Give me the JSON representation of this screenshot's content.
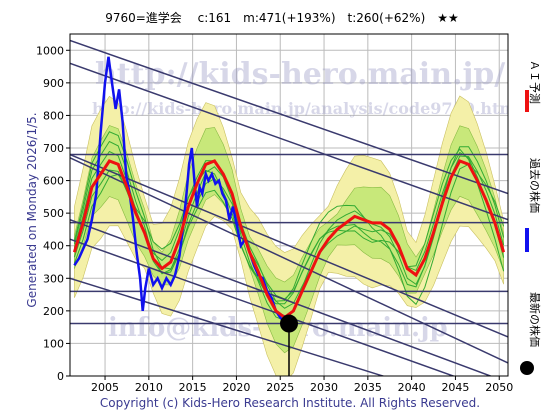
{
  "header": {
    "title": "9760=進学会　 c:161　m:471(+193%)　t:260(+62%)　★★"
  },
  "side_label": "Generated on Monday 2026/1/5.",
  "footer": "Copyright (c) Kids-Hero Research Institute. All Rights Reserved.",
  "watermarks": {
    "url": "http://kids-hero.main.jp/",
    "analysis_url": "http://kids-hero.main.jp/analysis/code9760.html",
    "email": "info@kids-hero.main.jp"
  },
  "legend": [
    {
      "label": "ＡＩ予測",
      "color": "#ee1111"
    },
    {
      "label": "過去の株価",
      "color": "#1111ee"
    },
    {
      "label": "最新の株価",
      "color": "#000000"
    }
  ],
  "colors": {
    "band_outer": "#f4f0a8",
    "band_inner": "#c8e87a",
    "analog_lines": "#33aa33",
    "trend_lines": "#3a3a6e",
    "grid": "#bbbbbb",
    "price": "#1111ee",
    "forecast": "#ee1111"
  },
  "chart_data": {
    "type": "line",
    "title": "9760=進学会　 c:161　m:471(+193%)　t:260(+62%)　★★",
    "xlim": [
      2001,
      2051
    ],
    "ylim": [
      0,
      1050
    ],
    "xticks": [
      2005,
      2010,
      2015,
      2020,
      2025,
      2030,
      2035,
      2040,
      2045,
      2050
    ],
    "yticks": [
      0,
      100,
      200,
      300,
      400,
      500,
      600,
      700,
      800,
      900,
      1000
    ],
    "grid": true,
    "latest": {
      "x": 2026.0,
      "y": 161
    },
    "horizontal_levels": [
      161,
      260,
      471,
      680
    ],
    "price": [
      [
        2001.5,
        340
      ],
      [
        2002.0,
        360
      ],
      [
        2002.5,
        390
      ],
      [
        2003.0,
        420
      ],
      [
        2003.5,
        480
      ],
      [
        2004.0,
        560
      ],
      [
        2004.5,
        750
      ],
      [
        2005.0,
        900
      ],
      [
        2005.4,
        980
      ],
      [
        2005.8,
        900
      ],
      [
        2006.2,
        820
      ],
      [
        2006.6,
        880
      ],
      [
        2007.0,
        780
      ],
      [
        2007.4,
        620
      ],
      [
        2007.8,
        560
      ],
      [
        2008.2,
        480
      ],
      [
        2008.6,
        380
      ],
      [
        2009.0,
        300
      ],
      [
        2009.3,
        200
      ],
      [
        2009.6,
        270
      ],
      [
        2010.0,
        330
      ],
      [
        2010.5,
        280
      ],
      [
        2011.0,
        300
      ],
      [
        2011.5,
        270
      ],
      [
        2012.0,
        300
      ],
      [
        2012.5,
        280
      ],
      [
        2013.0,
        310
      ],
      [
        2013.5,
        370
      ],
      [
        2014.0,
        480
      ],
      [
        2014.3,
        560
      ],
      [
        2014.6,
        650
      ],
      [
        2014.9,
        700
      ],
      [
        2015.2,
        600
      ],
      [
        2015.5,
        520
      ],
      [
        2015.8,
        580
      ],
      [
        2016.1,
        560
      ],
      [
        2016.5,
        620
      ],
      [
        2016.8,
        600
      ],
      [
        2017.2,
        620
      ],
      [
        2017.6,
        590
      ],
      [
        2018.0,
        600
      ],
      [
        2018.4,
        560
      ],
      [
        2018.8,
        540
      ],
      [
        2019.2,
        480
      ],
      [
        2019.6,
        520
      ],
      [
        2020.0,
        470
      ],
      [
        2020.5,
        400
      ],
      [
        2021.0,
        420
      ],
      [
        2021.5,
        380
      ],
      [
        2022.0,
        340
      ],
      [
        2022.5,
        310
      ],
      [
        2023.0,
        300
      ],
      [
        2023.5,
        260
      ],
      [
        2024.0,
        240
      ],
      [
        2024.5,
        200
      ],
      [
        2025.0,
        180
      ],
      [
        2025.5,
        165
      ],
      [
        2026.0,
        161
      ]
    ],
    "ai_forecast": [
      [
        2001.5,
        380
      ],
      [
        2002.5,
        470
      ],
      [
        2003.5,
        580
      ],
      [
        2004.5,
        620
      ],
      [
        2005.5,
        660
      ],
      [
        2006.5,
        650
      ],
      [
        2007.5,
        580
      ],
      [
        2008.5,
        500
      ],
      [
        2009.5,
        440
      ],
      [
        2010.5,
        360
      ],
      [
        2011.5,
        330
      ],
      [
        2012.5,
        350
      ],
      [
        2013.5,
        420
      ],
      [
        2014.5,
        520
      ],
      [
        2015.5,
        590
      ],
      [
        2016.5,
        650
      ],
      [
        2017.5,
        660
      ],
      [
        2018.5,
        620
      ],
      [
        2019.5,
        560
      ],
      [
        2020.5,
        460
      ],
      [
        2021.5,
        380
      ],
      [
        2022.5,
        320
      ],
      [
        2023.5,
        250
      ],
      [
        2024.5,
        200
      ],
      [
        2025.5,
        180
      ],
      [
        2026.5,
        200
      ],
      [
        2027.5,
        260
      ],
      [
        2028.5,
        320
      ],
      [
        2029.5,
        380
      ],
      [
        2030.5,
        420
      ],
      [
        2031.5,
        450
      ],
      [
        2032.5,
        470
      ],
      [
        2033.5,
        490
      ],
      [
        2034.5,
        480
      ],
      [
        2035.5,
        470
      ],
      [
        2036.5,
        470
      ],
      [
        2037.5,
        450
      ],
      [
        2038.5,
        400
      ],
      [
        2039.5,
        330
      ],
      [
        2040.5,
        310
      ],
      [
        2041.5,
        360
      ],
      [
        2042.5,
        440
      ],
      [
        2043.5,
        530
      ],
      [
        2044.5,
        610
      ],
      [
        2045.5,
        660
      ],
      [
        2046.5,
        650
      ],
      [
        2047.5,
        600
      ],
      [
        2048.5,
        540
      ],
      [
        2049.5,
        470
      ],
      [
        2050.5,
        380
      ]
    ],
    "trend_lines": [
      [
        [
          2001,
          1030
        ],
        [
          2051,
          560
        ]
      ],
      [
        [
          2001,
          960
        ],
        [
          2051,
          480
        ]
      ],
      [
        [
          2001,
          680
        ],
        [
          2051,
          120
        ]
      ],
      [
        [
          2001,
          670
        ],
        [
          2051,
          40
        ]
      ],
      [
        [
          2001,
          480
        ],
        [
          2051,
          -20
        ]
      ],
      [
        [
          2001,
          420
        ],
        [
          2051,
          -60
        ]
      ],
      [
        [
          2001,
          300
        ],
        [
          2051,
          -120
        ]
      ]
    ]
  }
}
